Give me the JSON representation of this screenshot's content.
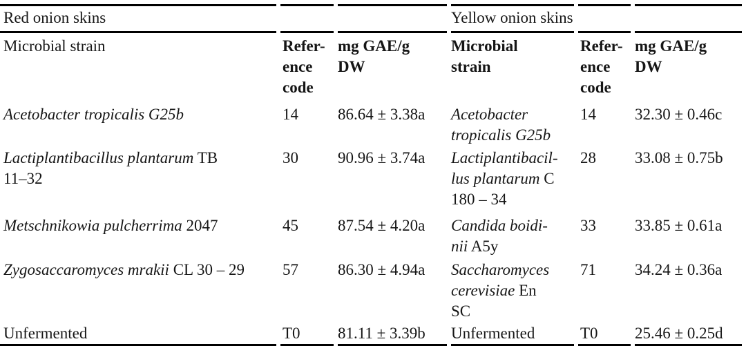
{
  "page": {
    "background_color": "#ffffff",
    "text_color": "#161616",
    "rule_color": "#000000"
  },
  "table": {
    "left_group": "Red onion skins",
    "right_group": "Yellow onion skins",
    "headers": {
      "strain_left": "Microbial strain",
      "strain_right_lines": [
        "Microbial",
        "strain"
      ],
      "reference_code_lines": [
        "Refer-",
        "ence",
        "code"
      ],
      "value_lines": [
        "mg GAE/g",
        "DW"
      ]
    },
    "rows": [
      {
        "red": {
          "strain": [
            [
              [
                "Acetobacter tropicalis G25b",
                "i"
              ]
            ]
          ],
          "code": "14",
          "value": "86.64 ± 3.38a"
        },
        "yellow": {
          "strain": [
            [
              [
                "Acetobacter",
                "i"
              ]
            ],
            [
              [
                "tropicalis G25b",
                "i"
              ]
            ]
          ],
          "code": "14",
          "value": "32.30 ± 0.46c"
        }
      },
      {
        "red": {
          "strain": [
            [
              [
                "Lactiplantibacillus plantarum",
                "i"
              ],
              [
                " TB",
                "r"
              ]
            ],
            [
              [
                "11–32",
                "r"
              ]
            ]
          ],
          "code": "30",
          "value": "90.96 ± 3.74a"
        },
        "yellow": {
          "strain": [
            [
              [
                "Lactiplantibacil-",
                "i"
              ]
            ],
            [
              [
                "lus plantarum",
                "i"
              ],
              [
                " C",
                "r"
              ]
            ],
            [
              [
                "180 – 34",
                "r"
              ]
            ]
          ],
          "code": "28",
          "value": "33.08 ± 0.75b"
        }
      },
      {
        "red": {
          "strain": [
            [
              [
                "Metschnikowia pulcherrima",
                "i"
              ],
              [
                " 2047",
                "r"
              ]
            ]
          ],
          "code": "45",
          "value": "87.54 ± 4.20a"
        },
        "yellow": {
          "strain": [
            [
              [
                "Candida boidi-",
                "i"
              ]
            ],
            [
              [
                "nii",
                "i"
              ],
              [
                " A5y",
                "r"
              ]
            ]
          ],
          "code": "33",
          "value": "33.85 ± 0.61a"
        }
      },
      {
        "red": {
          "strain": [
            [
              [
                "Zygosaccaromyces mrakii",
                "i"
              ],
              [
                " CL 30 – 29",
                "r"
              ]
            ]
          ],
          "code": "57",
          "value": "86.30 ± 4.94a"
        },
        "yellow": {
          "strain": [
            [
              [
                "Saccharomyces",
                "i"
              ]
            ],
            [
              [
                "cerevisiae",
                "i"
              ],
              [
                " En",
                "r"
              ]
            ],
            [
              [
                "SC",
                "r"
              ]
            ]
          ],
          "code": "71",
          "value": "34.24 ± 0.36a"
        }
      },
      {
        "red": {
          "strain": [
            [
              [
                "Unfermented",
                "r"
              ]
            ]
          ],
          "code": "T0",
          "value": "81.11 ± 3.39b"
        },
        "yellow": {
          "strain": [
            [
              [
                "Unfermented",
                "r"
              ]
            ]
          ],
          "code": "T0",
          "value": "25.46 ± 0.25d"
        }
      }
    ]
  },
  "chart_data": {
    "type": "table",
    "groups": [
      {
        "name": "Red onion skins",
        "columns": [
          "Microbial strain",
          "Reference code",
          "mg GAE/g DW"
        ],
        "rows": [
          {
            "strain": "Acetobacter tropicalis G25b",
            "reference_code": "14",
            "mg_GAE_per_g_DW": "86.64 ± 3.38a"
          },
          {
            "strain": "Lactiplantibacillus plantarum TB 11–32",
            "reference_code": "30",
            "mg_GAE_per_g_DW": "90.96 ± 3.74a"
          },
          {
            "strain": "Metschnikowia pulcherrima 2047",
            "reference_code": "45",
            "mg_GAE_per_g_DW": "87.54 ± 4.20a"
          },
          {
            "strain": "Zygosaccaromyces mrakii CL 30 – 29",
            "reference_code": "57",
            "mg_GAE_per_g_DW": "86.30 ± 4.94a"
          },
          {
            "strain": "Unfermented",
            "reference_code": "T0",
            "mg_GAE_per_g_DW": "81.11 ± 3.39b"
          }
        ]
      },
      {
        "name": "Yellow onion skins",
        "columns": [
          "Microbial strain",
          "Reference code",
          "mg GAE/g DW"
        ],
        "rows": [
          {
            "strain": "Acetobacter tropicalis G25b",
            "reference_code": "14",
            "mg_GAE_per_g_DW": "32.30 ± 0.46c"
          },
          {
            "strain": "Lactiplantibacillus plantarum C 180 – 34",
            "reference_code": "28",
            "mg_GAE_per_g_DW": "33.08 ± 0.75b"
          },
          {
            "strain": "Candida boidinii A5y",
            "reference_code": "33",
            "mg_GAE_per_g_DW": "33.85 ± 0.61a"
          },
          {
            "strain": "Saccharomyces cerevisiae En SC",
            "reference_code": "71",
            "mg_GAE_per_g_DW": "34.24 ± 0.36a"
          },
          {
            "strain": "Unfermented",
            "reference_code": "T0",
            "mg_GAE_per_g_DW": "25.46 ± 0.25d"
          }
        ]
      }
    ]
  }
}
